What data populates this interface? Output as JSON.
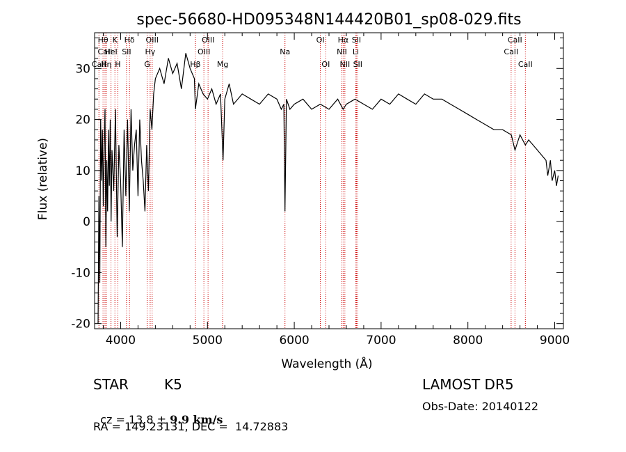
{
  "chart_data": {
    "type": "line",
    "title": "spec-56680-HD095348N144420B01_sp08-029.fits",
    "xlabel": "Wavelength (Å)",
    "ylabel": "Flux (relative)",
    "xlim": [
      3700,
      9100
    ],
    "ylim": [
      -21,
      37
    ],
    "x_ticks": [
      4000,
      5000,
      6000,
      7000,
      8000,
      9000
    ],
    "y_ticks": [
      -20,
      -10,
      0,
      10,
      20,
      30
    ],
    "grid": false,
    "line_color": "#000000",
    "marker_color": "#cc0000",
    "series": [
      {
        "x": [
          3740,
          3750,
          3760,
          3770,
          3780,
          3790,
          3800,
          3810,
          3820,
          3830,
          3840,
          3850,
          3860,
          3870,
          3880,
          3890,
          3900,
          3920,
          3940,
          3960,
          3980,
          4000,
          4020,
          4040,
          4060,
          4080,
          4100,
          4120,
          4140,
          4160,
          4180,
          4200,
          4220,
          4240,
          4260,
          4280,
          4300,
          4320,
          4340,
          4360,
          4380,
          4400,
          4450,
          4500,
          4550,
          4600,
          4650,
          4700,
          4750,
          4800,
          4850,
          4861,
          4900,
          4950,
          5000,
          5050,
          5100,
          5150,
          5180,
          5200,
          5250,
          5300,
          5400,
          5500,
          5600,
          5700,
          5800,
          5850,
          5880,
          5893,
          5910,
          5950,
          6000,
          6100,
          6200,
          6300,
          6400,
          6500,
          6563,
          6600,
          6700,
          6800,
          6900,
          7000,
          7100,
          7200,
          7300,
          7400,
          7500,
          7600,
          7700,
          7800,
          7900,
          8000,
          8100,
          8200,
          8300,
          8400,
          8500,
          8542,
          8600,
          8662,
          8700,
          8800,
          8850,
          8900,
          8920,
          8950,
          8970,
          9000,
          9020,
          9040
        ],
        "y": [
          -20,
          5,
          -12,
          20,
          8,
          18,
          3,
          15,
          22,
          -5,
          12,
          2,
          18,
          7,
          20,
          0,
          14,
          6,
          22,
          -3,
          15,
          8,
          -5,
          18,
          5,
          20,
          2,
          22,
          10,
          15,
          18,
          5,
          20,
          12,
          8,
          2,
          15,
          6,
          22,
          18,
          25,
          28,
          30,
          27,
          32,
          29,
          31,
          26,
          33,
          30,
          28,
          22,
          27,
          25,
          24,
          26,
          23,
          25,
          12,
          24,
          27,
          23,
          25,
          24,
          23,
          25,
          24,
          22,
          23,
          2,
          24,
          22,
          23,
          24,
          22,
          23,
          22,
          24,
          22,
          23,
          24,
          23,
          22,
          24,
          23,
          25,
          24,
          23,
          25,
          24,
          24,
          23,
          22,
          21,
          20,
          19,
          18,
          18,
          17,
          14,
          17,
          15,
          16,
          14,
          13,
          12,
          9,
          12,
          8,
          10,
          7,
          9
        ]
      }
    ],
    "spectral_lines": [
      {
        "label": "CaII",
        "x": 3750,
        "row": 2
      },
      {
        "label": "Hθ",
        "x": 3797,
        "row": 0
      },
      {
        "label": "CaII",
        "x": 3820,
        "row": 1
      },
      {
        "label": "Hη",
        "x": 3835,
        "row": 2
      },
      {
        "label": "K",
        "x": 3934,
        "row": 0
      },
      {
        "label": "HeI",
        "x": 3889,
        "row": 1
      },
      {
        "label": "H",
        "x": 3968,
        "row": 2
      },
      {
        "label": "Hδ",
        "x": 4102,
        "row": 0
      },
      {
        "label": "SII",
        "x": 4068,
        "row": 1
      },
      {
        "label": "OIII",
        "x": 4363,
        "row": 0
      },
      {
        "label": "Hγ",
        "x": 4340,
        "row": 1
      },
      {
        "label": "G",
        "x": 4305,
        "row": 2
      },
      {
        "label": "Hβ",
        "x": 4861,
        "row": 2
      },
      {
        "label": "OIII",
        "x": 5007,
        "row": 0
      },
      {
        "label": "OIII",
        "x": 4959,
        "row": 1
      },
      {
        "label": "Mg",
        "x": 5175,
        "row": 2
      },
      {
        "label": "Na",
        "x": 5893,
        "row": 1
      },
      {
        "label": "OI",
        "x": 6300,
        "row": 0
      },
      {
        "label": "OI",
        "x": 6363,
        "row": 2
      },
      {
        "label": "Hα",
        "x": 6563,
        "row": 0
      },
      {
        "label": "NII",
        "x": 6548,
        "row": 1
      },
      {
        "label": "NII",
        "x": 6583,
        "row": 2
      },
      {
        "label": "SII",
        "x": 6716,
        "row": 0
      },
      {
        "label": "Li",
        "x": 6708,
        "row": 1
      },
      {
        "label": "SII",
        "x": 6731,
        "row": 2
      },
      {
        "label": "CaII",
        "x": 8542,
        "row": 0
      },
      {
        "label": "CaII",
        "x": 8498,
        "row": 1
      },
      {
        "label": "CaII",
        "x": 8662,
        "row": 2
      }
    ]
  },
  "info": {
    "object_type": "STAR",
    "subclass": "K5",
    "survey": "LAMOST DR5",
    "cz_label": "cz = ",
    "cz_value": "13.8",
    "cz_pm": " ± ",
    "cz_error": "9.9",
    "cz_unit": " km/s",
    "obs_date": "Obs-Date: 20140122",
    "radec": "RA = 149.23131, DEC =  14.72883"
  }
}
